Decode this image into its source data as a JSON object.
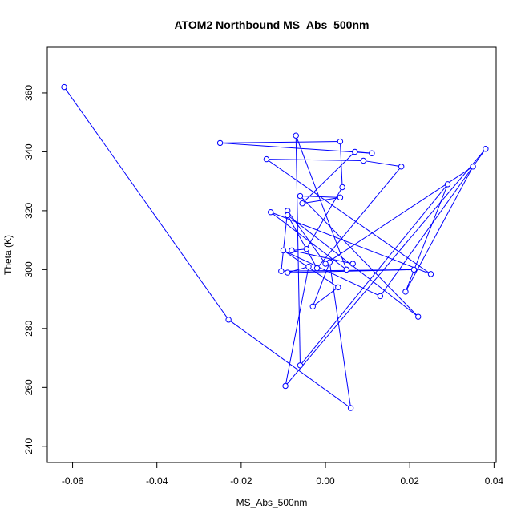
{
  "chart_data": {
    "type": "line",
    "title": "ATOM2 Northbound MS_Abs_500nm",
    "xlabel": "MS_Abs_500nm",
    "ylabel": "Theta (K)",
    "xlim": [
      -0.066,
      0.0405
    ],
    "ylim": [
      234.5,
      375.5
    ],
    "x_ticks": [
      -0.06,
      -0.04,
      -0.02,
      0.0,
      0.02,
      0.04
    ],
    "x_tick_labels": [
      "-0.06",
      "-0.04",
      "-0.02",
      "0.00",
      "0.02",
      "0.04"
    ],
    "y_ticks": [
      240,
      260,
      280,
      300,
      320,
      340,
      360
    ],
    "y_tick_labels": [
      "240",
      "260",
      "280",
      "300",
      "320",
      "340",
      "360"
    ],
    "grid": false,
    "legend": "none",
    "markers": "open-circle",
    "color": "#0000ff",
    "series": [
      {
        "x": [
          -0.062,
          -0.023,
          0.006,
          0.001,
          -0.003,
          0.003,
          -0.01,
          0.013,
          0.038,
          -0.0095,
          -0.004,
          -0.009,
          0.021,
          -0.0105,
          -0.009,
          0.0,
          0.035,
          0.019,
          0.029,
          -0.006,
          -0.007,
          0.005,
          -0.013,
          0.025,
          -0.014,
          0.009,
          0.018,
          -0.002,
          -0.009,
          0.022,
          -0.006,
          0.0035,
          -0.0055,
          0.007,
          0.011,
          -0.025,
          0.0035,
          0.004,
          -0.0045,
          -0.008,
          0.0065
        ],
        "y": [
          362,
          283,
          253,
          302.5,
          287.5,
          294,
          306.5,
          291,
          341,
          260.5,
          301,
          299,
          300,
          299.5,
          320,
          302,
          335,
          292.5,
          329,
          267.5,
          345.5,
          300,
          319.5,
          298.5,
          337.5,
          337,
          335,
          300.5,
          318.5,
          284,
          325,
          324.5,
          322.5,
          340,
          339.5,
          343,
          343.5,
          328,
          307,
          306.5,
          302
        ]
      }
    ]
  }
}
